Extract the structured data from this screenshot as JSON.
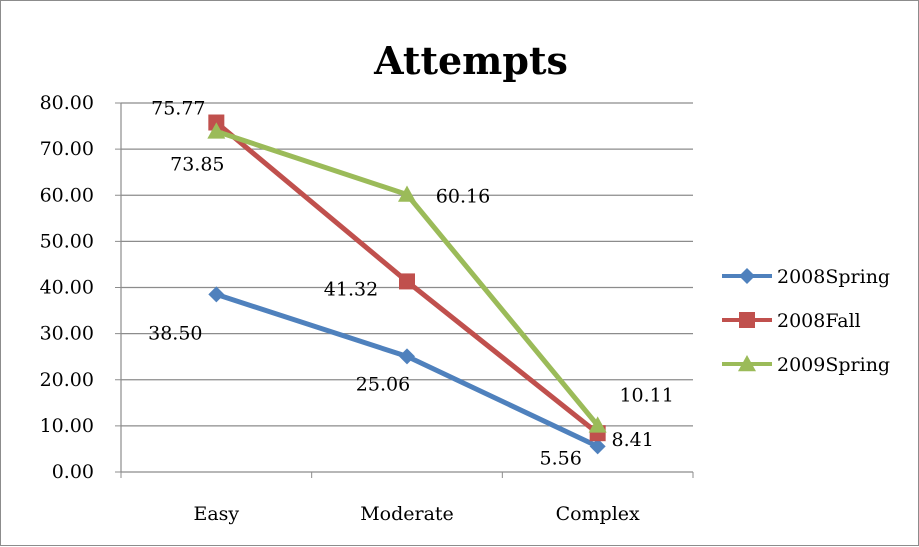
{
  "chart_data": {
    "type": "line",
    "title": "Attempts",
    "xlabel": "",
    "ylabel": "",
    "categories": [
      "Easy",
      "Moderate",
      "Complex"
    ],
    "ylim": [
      0,
      80
    ],
    "yticks": [
      "0.00",
      "10.00",
      "20.00",
      "30.00",
      "40.00",
      "50.00",
      "60.00",
      "70.00",
      "80.00"
    ],
    "grid": true,
    "legend_position": "right",
    "series": [
      {
        "name": "2008Spring",
        "values": [
          38.5,
          25.06,
          5.56
        ],
        "labels": [
          "38.50",
          "25.06",
          "5.56"
        ],
        "color": "#4F81BD",
        "marker": "diamond"
      },
      {
        "name": "2008Fall",
        "values": [
          75.77,
          41.32,
          8.41
        ],
        "labels": [
          "75.77",
          "41.32",
          "8.41"
        ],
        "color": "#C0504D",
        "marker": "square"
      },
      {
        "name": "2009Spring",
        "values": [
          73.85,
          60.16,
          10.11
        ],
        "labels": [
          "73.85",
          "60.16",
          "10.11"
        ],
        "color": "#9BBB59",
        "marker": "triangle"
      }
    ]
  }
}
